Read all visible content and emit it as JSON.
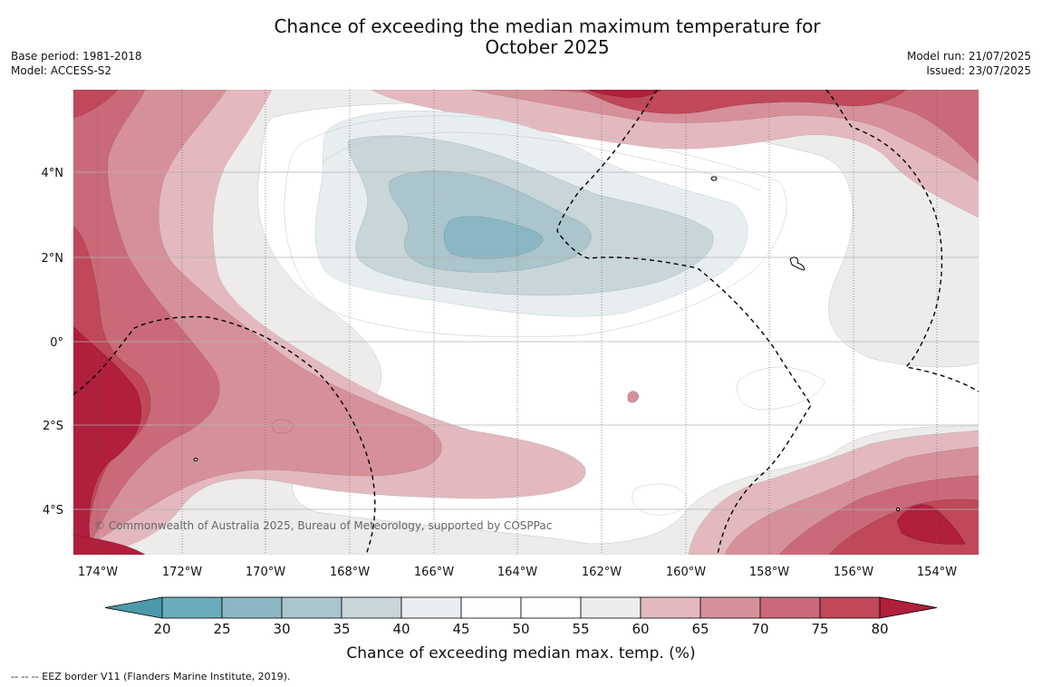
{
  "title_line1": "Chance of exceeding the median maximum temperature for",
  "title_line2": "October 2025",
  "meta_left": {
    "base_period": "Base period: 1981-2018",
    "model": "Model: ACCESS-S2"
  },
  "meta_right": {
    "model_run": "Model run: 21/07/2025",
    "issued": "Issued: 23/07/2025"
  },
  "map": {
    "lon_labels": [
      "174°W",
      "172°W",
      "170°W",
      "168°W",
      "166°W",
      "164°W",
      "162°W",
      "160°W",
      "158°W",
      "156°W",
      "154°W"
    ],
    "lat_labels": [
      "4°N",
      "2°N",
      "0°",
      "2°S",
      "4°S"
    ],
    "copyright": "© Commonwealth of Australia 2025, Bureau of Meteorology, supported by COSPPac"
  },
  "colorbar": {
    "label": "Chance of exceeding median max. temp. (%)",
    "ticks": [
      "20",
      "25",
      "30",
      "35",
      "40",
      "45",
      "50",
      "55",
      "60",
      "65",
      "70",
      "75",
      "80"
    ],
    "colors": [
      "#6aacbb",
      "#8ab7c3",
      "#aac5cc",
      "#c8d6da",
      "#e8eef0",
      "#ffffff",
      "#ffffff",
      "#eeeceb",
      "#e3b9bf",
      "#d6909a",
      "#ca6a78",
      "#c04858"
    ],
    "under_color": "#4b9aab",
    "over_color": "#b01f3c"
  },
  "footnote": "--  --  -- EEZ border V11 (Flanders Marine Institute, 2019)."
}
